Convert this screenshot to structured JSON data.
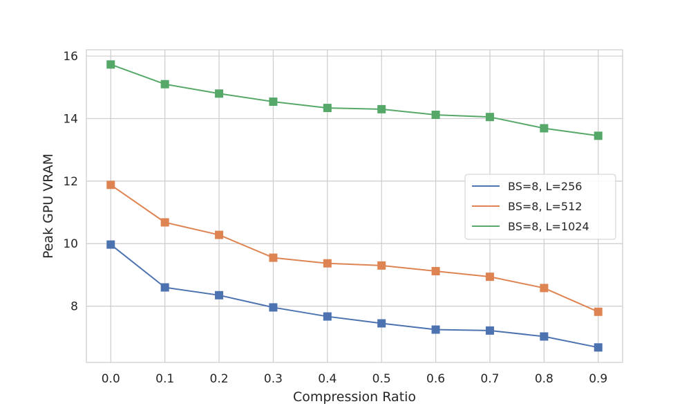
{
  "chart_data": {
    "type": "line",
    "title": "",
    "xlabel": "Compression Ratio",
    "ylabel": "Peak GPU VRAM",
    "x": [
      0.0,
      0.1,
      0.2,
      0.3,
      0.4,
      0.5,
      0.6,
      0.7,
      0.8,
      0.9
    ],
    "x_tick_labels": [
      "0.0",
      "0.1",
      "0.2",
      "0.3",
      "0.4",
      "0.5",
      "0.6",
      "0.7",
      "0.8",
      "0.9"
    ],
    "xlim": [
      -0.045,
      0.945
    ],
    "ylim": [
      6.2,
      16.2
    ],
    "y_ticks": [
      8,
      10,
      12,
      14,
      16
    ],
    "y_tick_labels": [
      "8",
      "10",
      "12",
      "14",
      "16"
    ],
    "grid": true,
    "legend_position": "center-right",
    "marker": "square",
    "series": [
      {
        "name": "BS=8, L=256",
        "color": "#4c72b0",
        "values": [
          9.97,
          8.6,
          8.35,
          7.96,
          7.67,
          7.45,
          7.25,
          7.22,
          7.03,
          6.68
        ]
      },
      {
        "name": "BS=8, L=512",
        "color": "#dd8452",
        "values": [
          11.88,
          10.68,
          10.28,
          9.55,
          9.37,
          9.3,
          9.12,
          8.94,
          8.58,
          7.82
        ]
      },
      {
        "name": "BS=8, L=1024",
        "color": "#55a868",
        "values": [
          15.73,
          15.1,
          14.8,
          14.54,
          14.34,
          14.3,
          14.12,
          14.05,
          13.69,
          13.45
        ]
      }
    ]
  }
}
